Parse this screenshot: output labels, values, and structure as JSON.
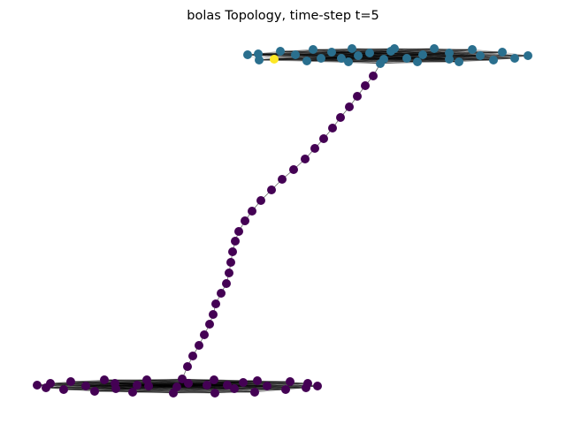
{
  "figure": {
    "title": "bolas Topology, time-step t=5"
  },
  "graph": {
    "colors": {
      "background": "#ffffff",
      "edge": "#000000",
      "cluster_top": "#2a6f8e",
      "chain_and_bottom": "#440154",
      "highlighted_node": "#fde725"
    },
    "clusters": [
      {
        "name": "top-clique",
        "node_count": 32,
        "color_role": "cluster_top",
        "fully_connected": true
      },
      {
        "name": "bottom-clique",
        "node_count": 31,
        "color_role": "chain_and_bottom",
        "fully_connected": true
      },
      {
        "name": "path-chain",
        "node_count": 36,
        "color_role": "chain_and_bottom",
        "fully_connected": false
      }
    ],
    "highlighted_node": {
      "cluster": "top-clique",
      "color_role": "highlighted_node"
    }
  }
}
